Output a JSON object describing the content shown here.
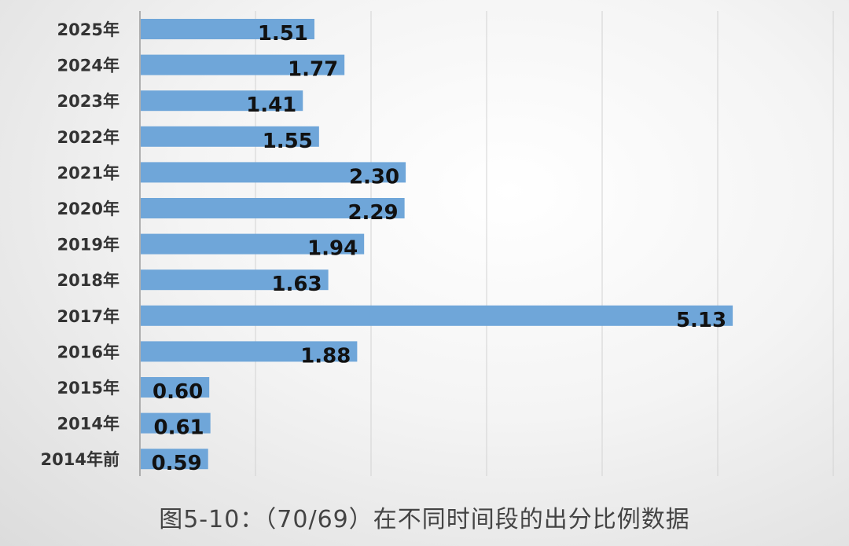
{
  "chart_data": {
    "type": "bar",
    "orientation": "horizontal",
    "title": "图5-10：（70/69）在不同时间段的出分比例数据",
    "categories": [
      "2025年",
      "2024年",
      "2023年",
      "2022年",
      "2021年",
      "2020年",
      "2019年",
      "2018年",
      "2017年",
      "2016年",
      "2015年",
      "2014年",
      "2014年前"
    ],
    "values": [
      1.51,
      1.77,
      1.41,
      1.55,
      2.3,
      2.29,
      1.94,
      1.63,
      5.13,
      1.88,
      0.6,
      0.61,
      0.59
    ],
    "value_labels": [
      "1.51",
      "1.77",
      "1.41",
      "1.55",
      "2.30",
      "2.29",
      "1.94",
      "1.63",
      "5.13",
      "1.88",
      "0.60",
      "0.61",
      "0.59"
    ],
    "xlim": [
      0,
      6
    ],
    "grid": true,
    "bar_color": "#6fa6d9",
    "xlabel": "",
    "ylabel": ""
  }
}
